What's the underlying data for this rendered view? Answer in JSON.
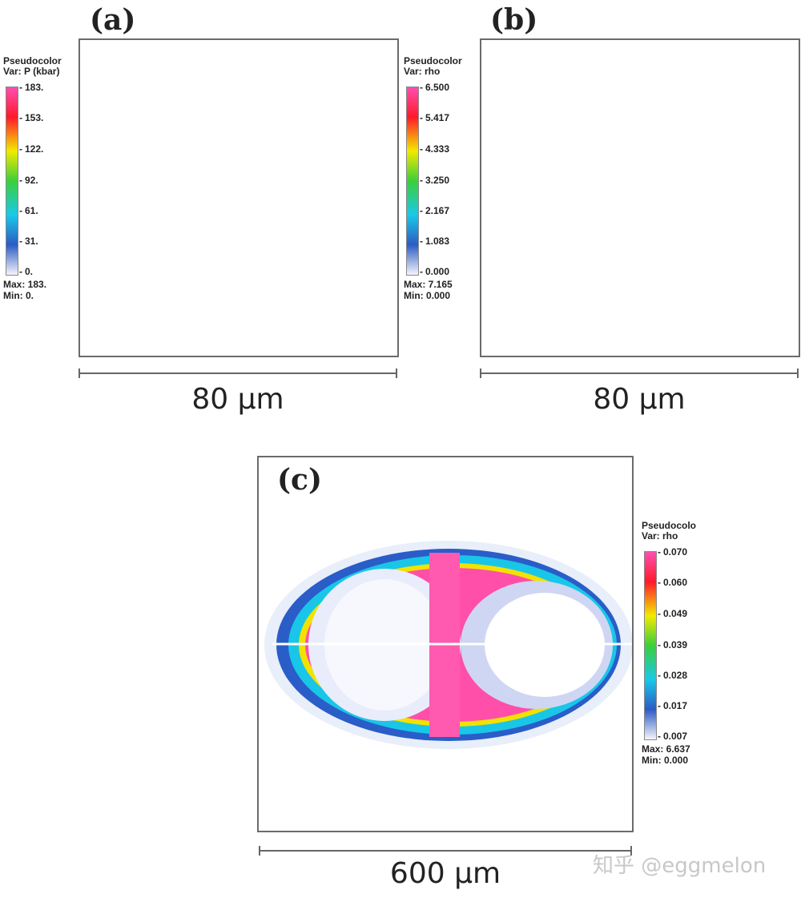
{
  "panels": {
    "a": {
      "label": "(a)",
      "legend": {
        "title": "Pseudocolor",
        "var": "Var: P (kbar)",
        "ticks": [
          "183.",
          "153.",
          "122.",
          "92.",
          "61.",
          "31.",
          "0."
        ],
        "max": "Max: 183.",
        "min": "Min: 0."
      },
      "scale": "80 μm"
    },
    "b": {
      "label": "(b)",
      "legend": {
        "title": "Pseudocolor",
        "var": "Var: rho",
        "ticks": [
          "6.500",
          "5.417",
          "4.333",
          "3.250",
          "2.167",
          "1.083",
          "0.000"
        ],
        "max": "Max: 7.165",
        "min": "Min: 0.000"
      },
      "scale": "80 μm"
    },
    "c": {
      "label": "(c)",
      "legend": {
        "title": "Pseudocolo",
        "var": "Var: rho",
        "ticks": [
          "0.070",
          "0.060",
          "0.049",
          "0.039",
          "0.028",
          "0.017",
          "0.007"
        ],
        "max": "Max: 6.637",
        "min": "Min: 0.000"
      },
      "scale": "600 μm"
    }
  },
  "watermark": "知乎 @eggmelon",
  "colors": {
    "pink": "#ff4fa8",
    "red": "#ff1a1a",
    "yellow": "#f5e400",
    "green": "#2ecc3a",
    "cyan": "#19c9e8",
    "blue": "#2244b8",
    "peach": "#fdd6bd"
  }
}
